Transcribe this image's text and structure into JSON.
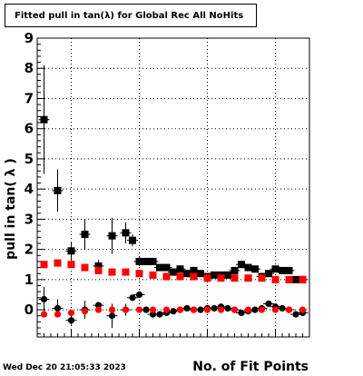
{
  "chart_data": {
    "type": "scatter",
    "title": "Fitted pull in tan(λ) for Global Rec All NoHits",
    "xlabel": "No. of Fit Points",
    "ylabel": "pull in tan( λ )",
    "xlim": [
      5,
      45
    ],
    "ylim": [
      -0.9,
      9
    ],
    "yticks": [
      0,
      1,
      2,
      3,
      4,
      5,
      6,
      7,
      8,
      9
    ],
    "grid": true,
    "legend": "none",
    "series": [
      {
        "marker": "square",
        "color": "#000000",
        "x": [
          6,
          8,
          10,
          12,
          14,
          16,
          18,
          19,
          20,
          21,
          22,
          23,
          24,
          25,
          26,
          27,
          28,
          29,
          30,
          31,
          32,
          33,
          34,
          35,
          36,
          37,
          38,
          39,
          40,
          41,
          42,
          43,
          44
        ],
        "y": [
          6.3,
          3.95,
          1.95,
          2.5,
          1.45,
          2.45,
          2.55,
          2.3,
          1.6,
          1.6,
          1.6,
          1.4,
          1.4,
          1.25,
          1.35,
          1.2,
          1.3,
          1.2,
          1.1,
          1.15,
          1.15,
          1.15,
          1.3,
          1.5,
          1.4,
          1.35,
          1.1,
          1.2,
          1.35,
          1.3,
          1.3,
          1.0,
          1.0
        ],
        "yerr": [
          1.8,
          0.7,
          0.3,
          0.5,
          0.2,
          0.6,
          0.35,
          0.2,
          0.15,
          0.1,
          0.1,
          0.1,
          0.1,
          0.1,
          0.08,
          0.08,
          0.08,
          0.08,
          0.08,
          0.08,
          0.08,
          0.08,
          0.08,
          0.08,
          0.08,
          0.08,
          0.08,
          0.08,
          0.08,
          0.08,
          0.08,
          0.08,
          0.08
        ]
      },
      {
        "marker": "circle",
        "color": "#000000",
        "x": [
          6,
          8,
          10,
          12,
          14,
          16,
          18,
          19,
          20,
          21,
          22,
          23,
          24,
          25,
          26,
          27,
          28,
          29,
          30,
          31,
          32,
          33,
          34,
          35,
          36,
          37,
          38,
          39,
          40,
          41,
          42,
          43,
          44
        ],
        "y": [
          0.35,
          0.05,
          -0.35,
          0.0,
          0.15,
          -0.2,
          0.0,
          0.4,
          0.5,
          0.0,
          -0.15,
          -0.15,
          -0.1,
          -0.05,
          0.0,
          0.05,
          0.0,
          0.0,
          0.05,
          0.05,
          0.1,
          0.05,
          0.0,
          -0.1,
          -0.05,
          0.0,
          0.05,
          0.2,
          0.1,
          0.05,
          0.0,
          -0.15,
          -0.1
        ],
        "yerr": [
          0.4,
          0.3,
          0.15,
          0.3,
          0.1,
          0.4,
          0.2,
          0.1,
          0.08,
          0.05,
          0.05,
          0.05,
          0.05,
          0.05,
          0.05,
          0.05,
          0.05,
          0.05,
          0.05,
          0.05,
          0.05,
          0.05,
          0.05,
          0.05,
          0.05,
          0.05,
          0.05,
          0.05,
          0.05,
          0.05,
          0.05,
          0.05,
          0.05
        ]
      },
      {
        "marker": "square",
        "color": "#ff0000",
        "x": [
          6,
          8,
          10,
          12,
          14,
          16,
          18,
          20,
          22,
          24,
          26,
          28,
          30,
          32,
          34,
          36,
          38,
          40,
          42,
          44
        ],
        "y": [
          1.5,
          1.55,
          1.5,
          1.4,
          1.3,
          1.25,
          1.25,
          1.2,
          1.15,
          1.1,
          1.1,
          1.1,
          1.05,
          1.05,
          1.05,
          1.05,
          1.05,
          1.0,
          1.0,
          1.0
        ]
      },
      {
        "marker": "circle",
        "color": "#ff0000",
        "x": [
          6,
          8,
          10,
          12,
          14,
          16,
          18,
          20,
          22,
          24,
          26,
          28,
          30,
          32,
          34,
          36,
          38,
          40,
          42,
          44
        ],
        "y": [
          -0.15,
          -0.15,
          -0.1,
          -0.05,
          0.0,
          0.0,
          0.0,
          0.0,
          0.0,
          0.0,
          0.0,
          0.0,
          0.0,
          0.0,
          0.0,
          0.0,
          0.0,
          0.0,
          0.0,
          0.0
        ]
      }
    ],
    "footer_timestamp": "Wed Dec 20 21:05:33 2023"
  }
}
